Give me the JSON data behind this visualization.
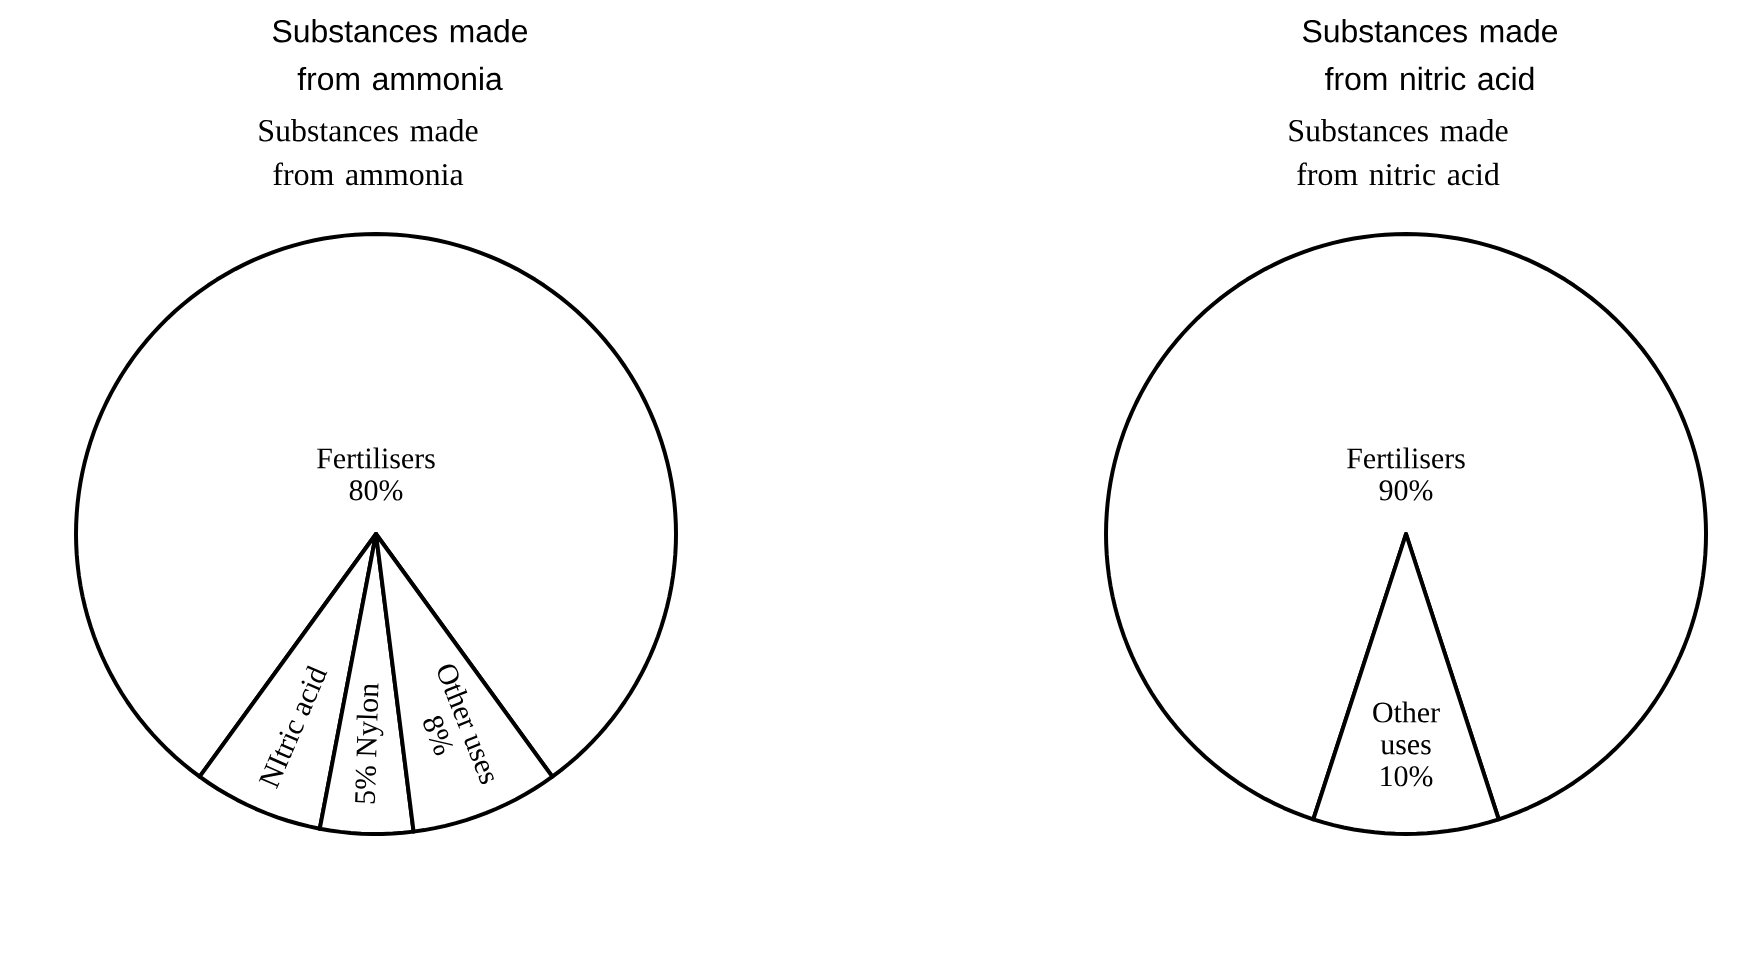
{
  "chart_data": [
    {
      "type": "pie",
      "title": "Substances made from ammonia",
      "subtitle": "Substances made from ammonia",
      "categories": [
        "Fertilisers",
        "NItric acid",
        "5% Nylon",
        "Other uses"
      ],
      "values": [
        80,
        7,
        5,
        8
      ],
      "value_labels": [
        "80%",
        null,
        null,
        "8%"
      ],
      "colors": [
        "#ffffff",
        "#ffffff",
        "#ffffff",
        "#ffffff"
      ]
    },
    {
      "type": "pie",
      "title": "Substances made from nitric acid",
      "subtitle": "Substances made from nitric acid",
      "categories": [
        "Fertilisers",
        "Other uses"
      ],
      "values": [
        90,
        10
      ],
      "value_labels": [
        "90%",
        "10%"
      ],
      "colors": [
        "#ffffff",
        "#ffffff"
      ]
    }
  ]
}
